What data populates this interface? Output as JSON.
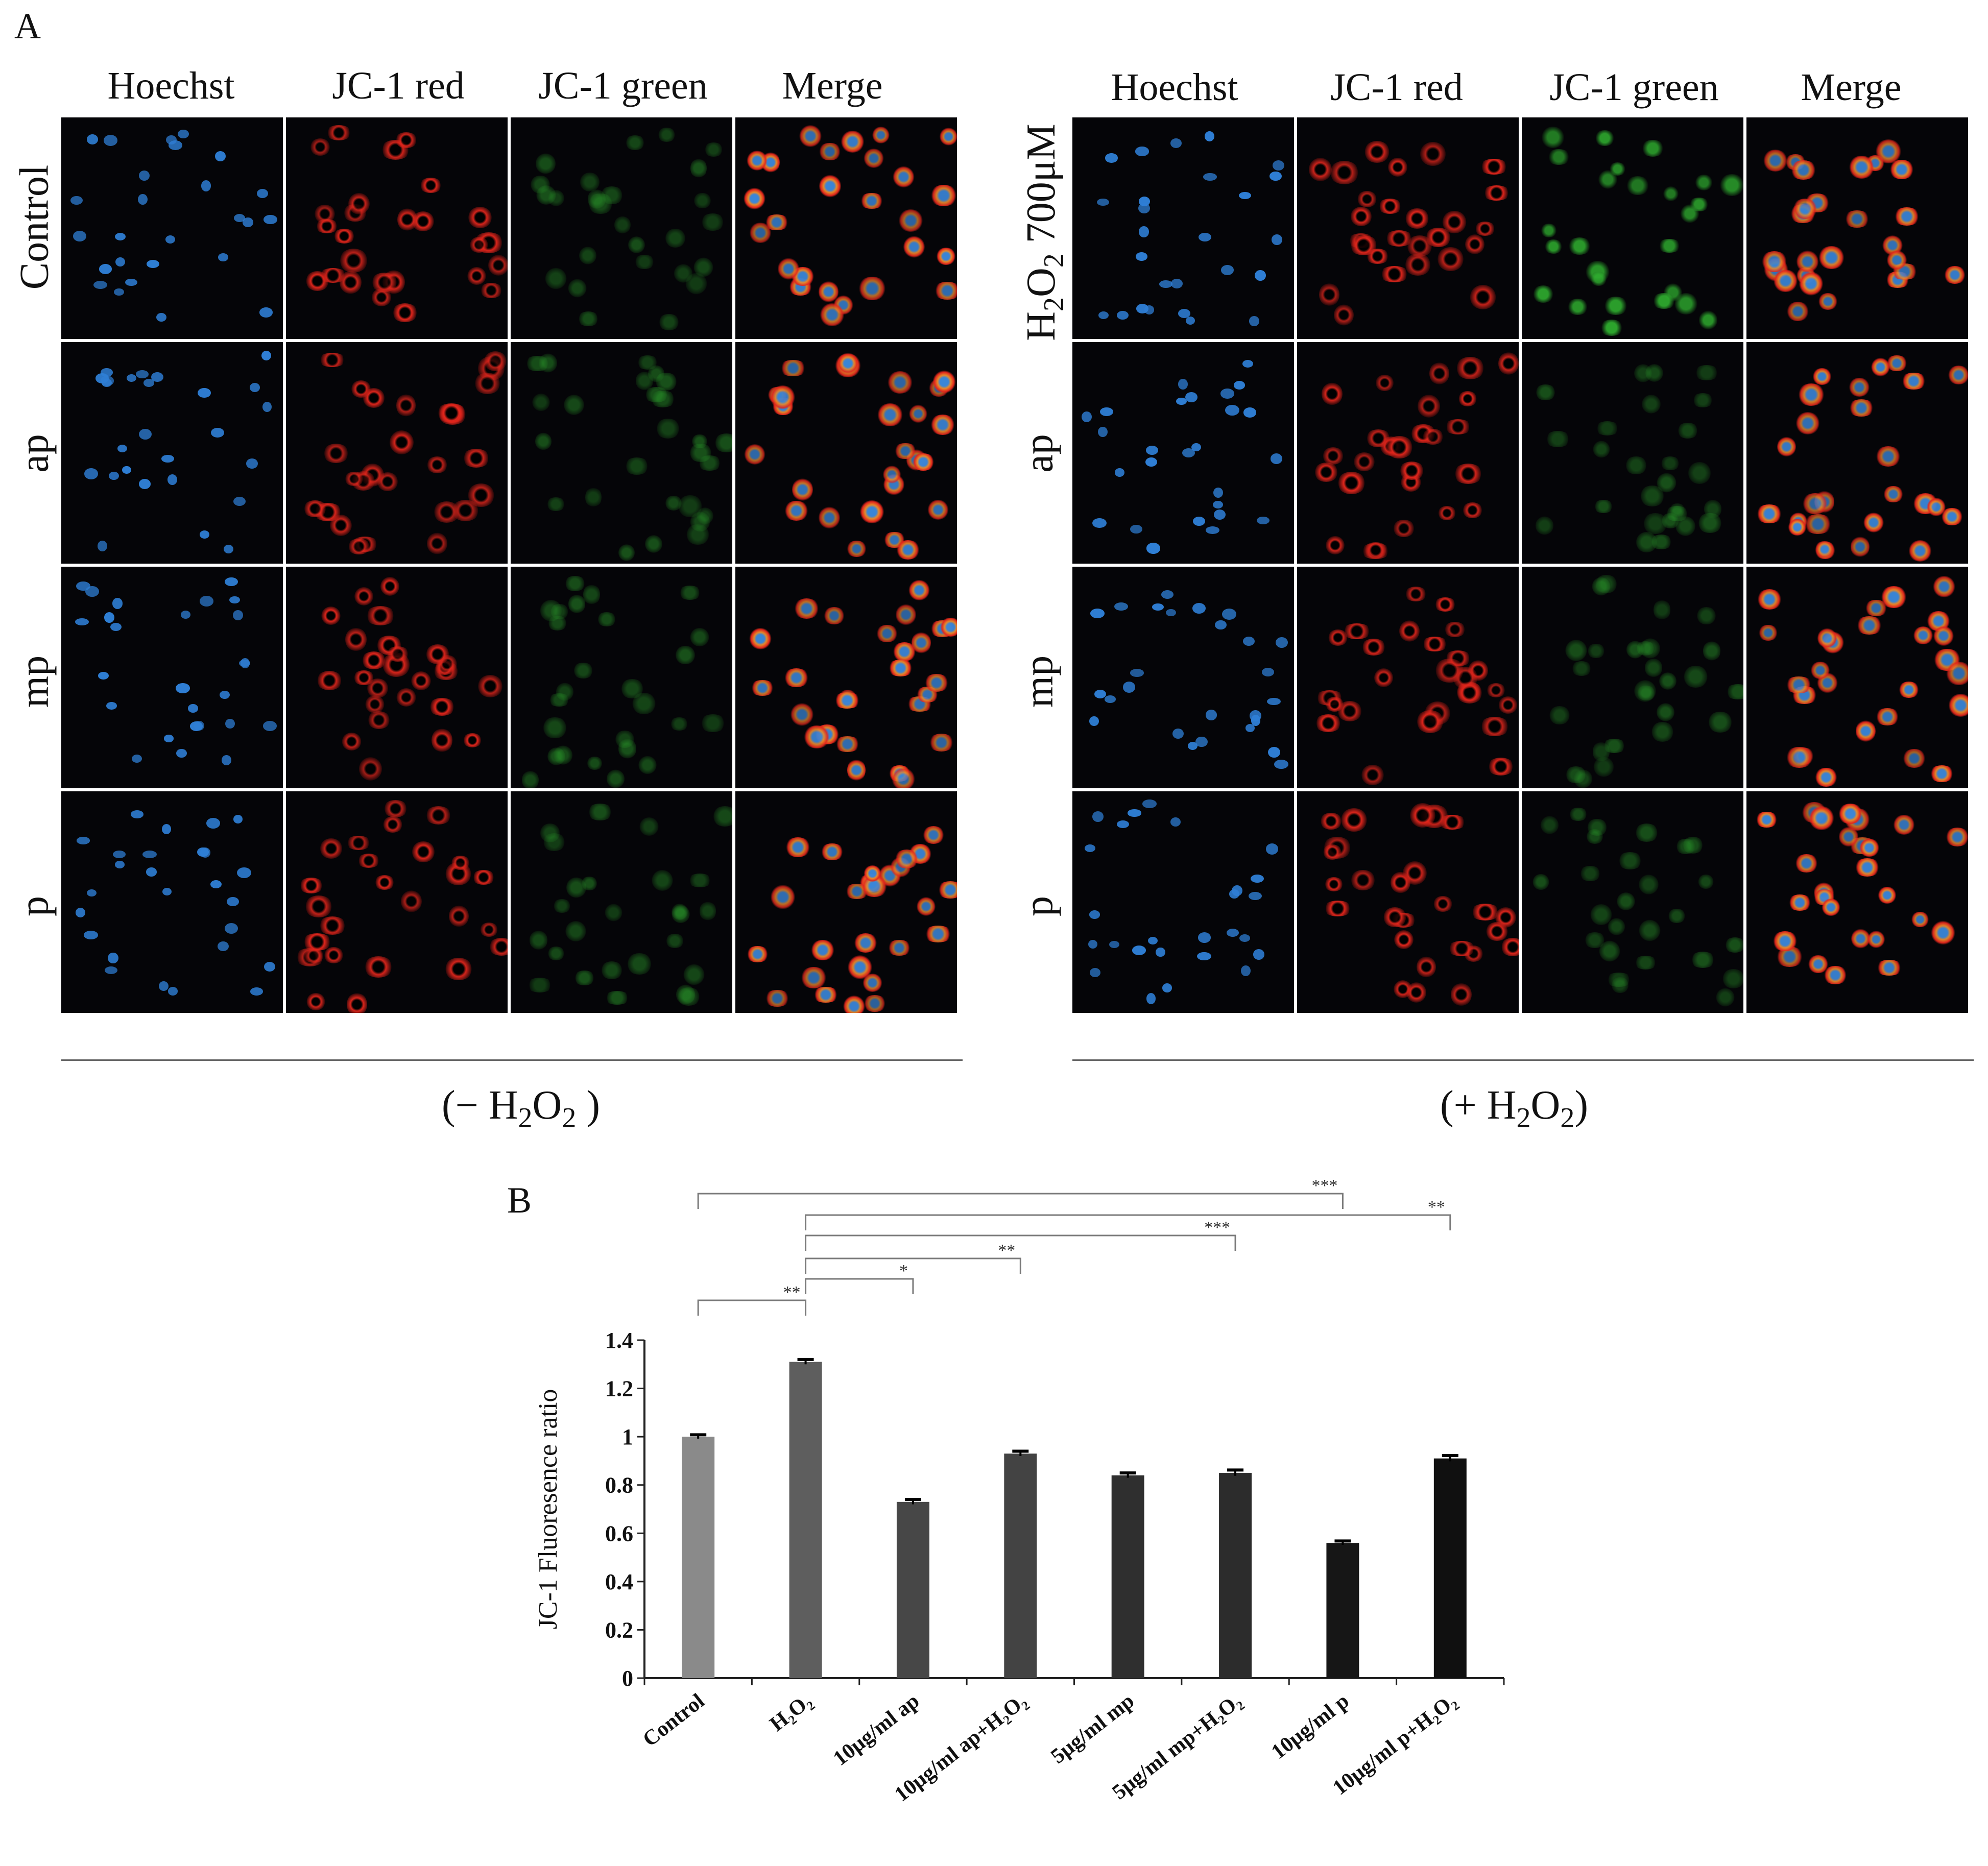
{
  "panel_a_letter": "A",
  "panel_b_letter": "B",
  "column_headers": [
    "Hoechst",
    "JC-1 red",
    "JC-1 green",
    "Merge"
  ],
  "left_rows": [
    "Control",
    "ap",
    "mp",
    "p"
  ],
  "right_rows": [
    "H2O2 700μM",
    "ap",
    "mp",
    "p"
  ],
  "right_first_row_parts": {
    "h": "H",
    "sub1": "2",
    "o": "O",
    "sub2": "2",
    "rest": " 700μM"
  },
  "condition_left": {
    "pre": "(− H",
    "s1": "2",
    "mid": "O",
    "s2": "2",
    "post": " )"
  },
  "condition_right": {
    "pre": "(+ H",
    "s1": "2",
    "mid": "O",
    "s2": "2",
    "post": ")"
  },
  "channel_colors": {
    "hoechst": "#2f7fd6",
    "red": "#e3261c",
    "green": "#2fae2f",
    "merge_core": "#e88a2a"
  },
  "chart_data": {
    "type": "bar",
    "categories": [
      "Control",
      "H₂O₂",
      "10μg/ml ap",
      "10μg/ml ap+H₂O₂",
      "5μg/ml mp",
      "5μg/ml mp+H₂O₂",
      "10μg/ml p",
      "10μg/ml p+H₂O₂"
    ],
    "values": [
      1.0,
      1.31,
      0.73,
      0.93,
      0.84,
      0.85,
      0.56,
      0.91
    ],
    "errors": [
      0.008,
      0.01,
      0.01,
      0.01,
      0.01,
      0.012,
      0.008,
      0.012
    ],
    "bar_colors": [
      "#8a8a8a",
      "#5e5e5e",
      "#474747",
      "#434343",
      "#2f2f2f",
      "#2c2c2c",
      "#161616",
      "#101010"
    ],
    "ylabel": "JC-1 Fluoresence ratio",
    "ylim": [
      0,
      1.4
    ],
    "yticks": [
      "0",
      "0.2",
      "0.4",
      "0.6",
      "0.8",
      "1",
      "1.2",
      "1.4"
    ],
    "significance": [
      {
        "from": 0,
        "to": 6,
        "label": "***"
      },
      {
        "from": 1,
        "to": 7,
        "label": "**"
      },
      {
        "from": 1,
        "to": 5,
        "label": "***"
      },
      {
        "from": 1,
        "to": 3,
        "label": "**"
      },
      {
        "from": 1,
        "to": 2,
        "label": "*"
      },
      {
        "from": 0,
        "to": 1,
        "label": "**"
      }
    ]
  }
}
